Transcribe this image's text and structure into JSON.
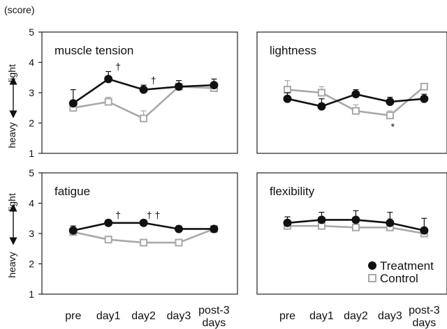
{
  "figure": {
    "unit_label": "(score)",
    "ylabel_top": "light",
    "ylabel_bottom": "heavy",
    "legend": {
      "treatment": "Treatment",
      "control": "Control"
    },
    "colors": {
      "treatment": "#111111",
      "control": "#a8a8a8"
    }
  },
  "chart_data": [
    {
      "type": "line",
      "title": "muscle tension",
      "categories": [
        "pre",
        "day1",
        "day2",
        "day3",
        "post-3 days"
      ],
      "ylim": [
        1,
        5
      ],
      "yticks": [
        1,
        2,
        3,
        4,
        5
      ],
      "series": [
        {
          "name": "Treatment",
          "values": [
            2.65,
            3.45,
            3.1,
            3.2,
            3.25
          ],
          "errors": [
            0.45,
            0.25,
            0.15,
            0.2,
            0.2
          ]
        },
        {
          "name": "Control",
          "values": [
            2.5,
            2.7,
            2.15,
            3.2,
            3.15
          ],
          "errors": [
            0.25,
            0.15,
            0.25,
            0.2,
            0.1
          ]
        }
      ],
      "annotations": [
        {
          "category": "day1",
          "text": "†"
        },
        {
          "category": "day2",
          "text": "†"
        }
      ]
    },
    {
      "type": "line",
      "title": "lightness",
      "categories": [
        "pre",
        "day1",
        "day2",
        "day3",
        "post-3 days"
      ],
      "ylim": [
        1,
        5
      ],
      "yticks": [
        1,
        2,
        3,
        4,
        5
      ],
      "series": [
        {
          "name": "Treatment",
          "values": [
            2.8,
            2.55,
            2.95,
            2.7,
            2.8
          ],
          "errors": [
            0.2,
            0.25,
            0.15,
            0.15,
            0.15
          ]
        },
        {
          "name": "Control",
          "values": [
            3.1,
            3.0,
            2.4,
            2.25,
            3.2
          ],
          "errors": [
            0.3,
            0.2,
            0.2,
            0.15,
            0.1
          ]
        }
      ],
      "annotations": [
        {
          "category": "day3",
          "text": "*"
        }
      ]
    },
    {
      "type": "line",
      "title": "fatigue",
      "categories": [
        "pre",
        "day1",
        "day2",
        "day3",
        "post-3 days"
      ],
      "ylim": [
        1,
        5
      ],
      "yticks": [
        1,
        2,
        3,
        4,
        5
      ],
      "series": [
        {
          "name": "Treatment",
          "values": [
            3.1,
            3.35,
            3.35,
            3.15,
            3.15
          ],
          "errors": [
            0.15,
            0.1,
            0.1,
            0.1,
            0.1
          ]
        },
        {
          "name": "Control",
          "values": [
            3.05,
            2.8,
            2.7,
            2.7,
            3.15
          ],
          "errors": [
            0.15,
            0.1,
            0.1,
            0.1,
            0.1
          ]
        }
      ],
      "annotations": [
        {
          "category": "day1",
          "text": "†"
        },
        {
          "category": "day2",
          "text": "† †"
        }
      ]
    },
    {
      "type": "line",
      "title": "flexibility",
      "categories": [
        "pre",
        "day1",
        "day2",
        "day3",
        "post-3 days"
      ],
      "ylim": [
        1,
        5
      ],
      "yticks": [
        1,
        2,
        3,
        4,
        5
      ],
      "series": [
        {
          "name": "Treatment",
          "values": [
            3.35,
            3.45,
            3.45,
            3.35,
            3.1
          ],
          "errors": [
            0.2,
            0.25,
            0.3,
            0.35,
            0.4
          ]
        },
        {
          "name": "Control",
          "values": [
            3.25,
            3.25,
            3.2,
            3.2,
            3.0
          ],
          "errors": [
            0.3,
            0.3,
            0.3,
            0.3,
            0.2
          ]
        }
      ],
      "annotations": []
    }
  ]
}
